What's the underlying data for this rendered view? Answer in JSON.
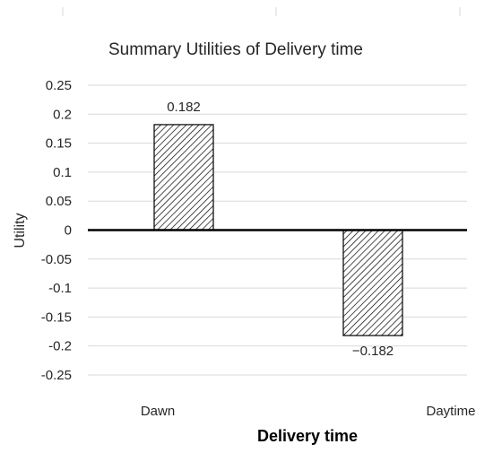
{
  "chart_data": {
    "type": "bar",
    "title": "Summary Utilities of  Delivery time",
    "xlabel": "Delivery time",
    "ylabel": "Utility",
    "categories": [
      "Dawn",
      "Daytime"
    ],
    "values": [
      0.182,
      -0.182
    ],
    "data_labels": [
      "0.182",
      "−0.182"
    ],
    "yticks": [
      0.25,
      0.2,
      0.15,
      0.1,
      0.05,
      0,
      -0.05,
      -0.1,
      -0.15,
      -0.2,
      -0.25
    ],
    "ytick_labels": [
      "0.25",
      "0.2",
      "0.15",
      "0.1",
      "0.05",
      "0",
      "-0.05",
      "-0.1",
      "-0.15",
      "-0.2",
      "-0.25"
    ],
    "ylim": [
      -0.25,
      0.25
    ],
    "grid": true,
    "bar_fill": "hatched",
    "colors": {
      "bar_stroke": "#000000",
      "hatch": "#000000",
      "grid": "#d9d9d9",
      "zero_line": "#000000"
    }
  }
}
